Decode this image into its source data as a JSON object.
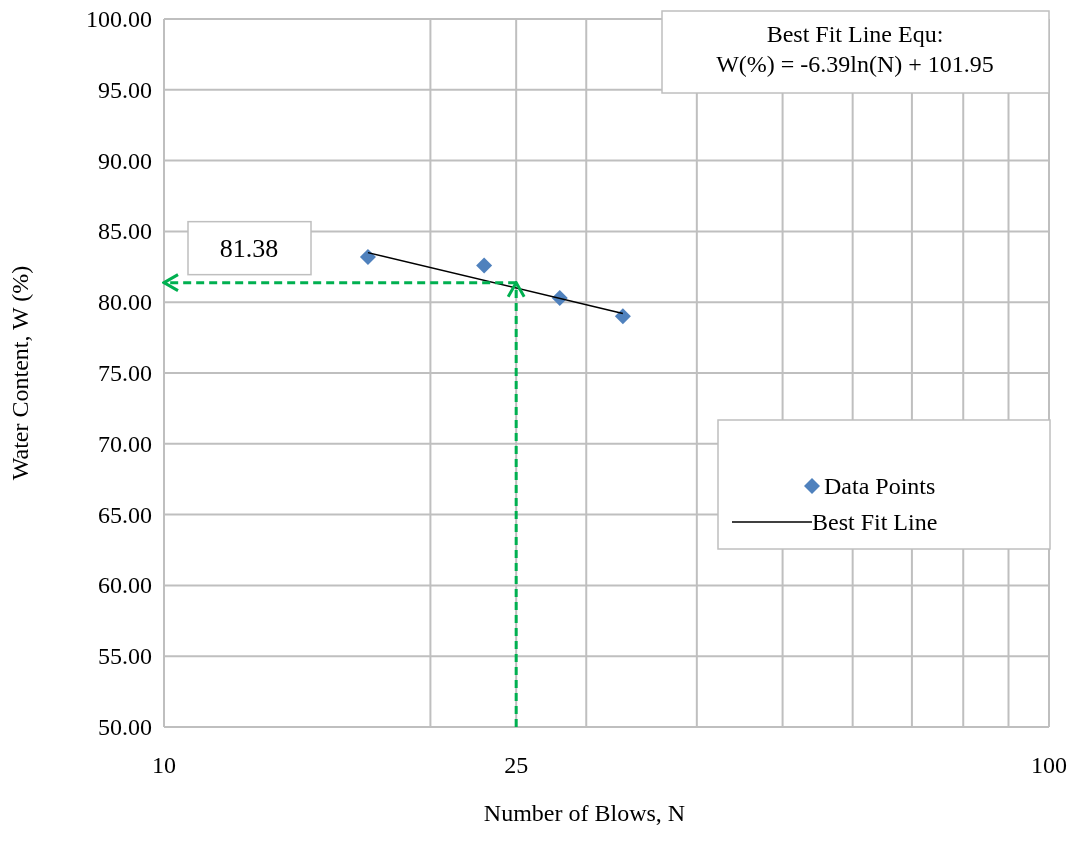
{
  "chart_data": {
    "type": "scatter",
    "xlabel": "Number of Blows, N",
    "ylabel": "Water Content, W (%)",
    "log": "x",
    "xlim": [
      10,
      100
    ],
    "ylim": [
      50,
      100
    ],
    "xticks": [
      10,
      {
        "value": 20,
        "label": null
      },
      25,
      {
        "value": 30,
        "label": null
      },
      {
        "value": 40,
        "label": null
      },
      {
        "value": 50,
        "label": null
      },
      {
        "value": 60,
        "label": null
      },
      {
        "value": 70,
        "label": null
      },
      {
        "value": 80,
        "label": null
      },
      {
        "value": 90,
        "label": null
      },
      100
    ],
    "yticks": [
      {
        "value": 50,
        "label": "50.00"
      },
      {
        "value": 55,
        "label": "55.00"
      },
      {
        "value": 60,
        "label": "60.00"
      },
      {
        "value": 65,
        "label": "65.00"
      },
      {
        "value": 70,
        "label": "70.00"
      },
      {
        "value": 75,
        "label": "75.00"
      },
      {
        "value": 80,
        "label": "80.00"
      },
      {
        "value": 85,
        "label": "85.00"
      },
      {
        "value": 90,
        "label": "90.00"
      },
      {
        "value": 95,
        "label": "95.00"
      },
      {
        "value": 100,
        "label": "100.00"
      }
    ],
    "grid": true,
    "legend": "right",
    "series": [
      {
        "name": "Data Points",
        "color": "#4f81bd",
        "marker": "diamond",
        "x": [
          17,
          23,
          28,
          33
        ],
        "values": [
          83.2,
          82.6,
          80.3,
          79.0
        ]
      },
      {
        "name": "Best Fit Line",
        "type": "line",
        "color": "#000000",
        "marker": "none",
        "x": [
          17,
          33
        ],
        "values": [
          83.5,
          79.2
        ]
      },
      {
        "type": "line",
        "color": "#00b050",
        "marker": "none",
        "line_style": "dashed",
        "x": [
          25,
          10
        ],
        "values": [
          81.38,
          81.38
        ]
      },
      {
        "type": "line",
        "color": "#00b050",
        "marker": "none",
        "line_style": "dashed",
        "x": [
          25,
          25
        ],
        "values": [
          50,
          81.38
        ]
      }
    ],
    "annotations": [
      {
        "text": "81.38",
        "x": 10,
        "y": 81.38
      },
      "Best Fit Line Equ:\nW(%) = -6.39ln(N) + 101.95"
    ]
  }
}
